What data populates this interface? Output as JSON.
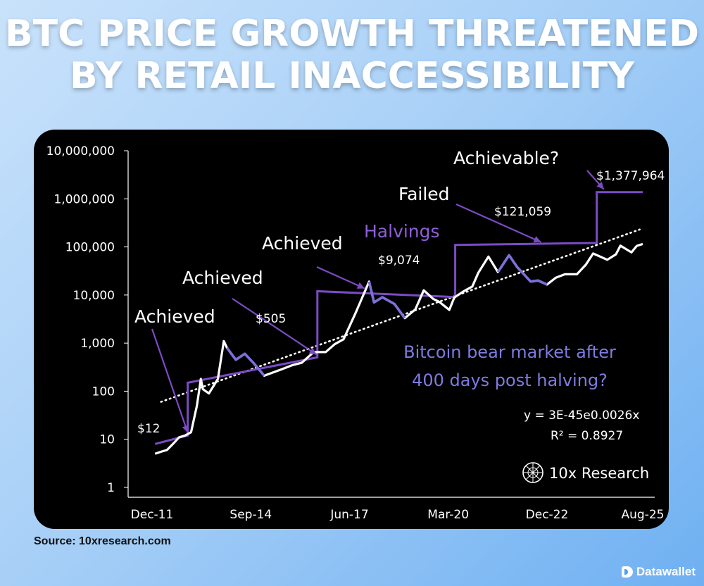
{
  "title_line1": "BTC PRICE GROWTH THREATENED",
  "title_line2": "BY RETAIL INACCESSIBILITY",
  "source": "Source: 10xresearch.com",
  "brand": "Datawallet",
  "logo_name": "10x Research",
  "colors": {
    "price_line": "#ffffff",
    "bear_segments": "#7b6fd8",
    "halving_line": "#7c4bc4",
    "trendline": "#ffffff",
    "background": "#000000"
  },
  "chart_data": {
    "type": "line",
    "title": "BTC PRICE GROWTH THREATENED BY RETAIL INACCESSIBILITY",
    "y_scale": "log",
    "ylim": [
      1,
      10000000
    ],
    "y_ticks": [
      "10,000,000",
      "1,000,000",
      "100,000",
      "10,000",
      "1,000",
      "100",
      "10",
      "1"
    ],
    "y_tick_values": [
      10000000,
      1000000,
      100000,
      10000,
      1000,
      100,
      10,
      1
    ],
    "x_ticks": [
      "Dec-11",
      "Sep-14",
      "Jun-17",
      "Mar-20",
      "Dec-22",
      "Aug-25"
    ],
    "x_tick_dates": [
      "2011-12-01",
      "2014-09-01",
      "2017-06-01",
      "2020-03-01",
      "2022-12-01",
      "2025-08-01"
    ],
    "xlim": [
      "2011-12-01",
      "2025-08-01"
    ],
    "grid": false,
    "series": [
      {
        "type": "line",
        "points": [
          [
            "2012-01-01",
            5
          ],
          [
            "2012-03-01",
            5.5
          ],
          [
            "2012-05-01",
            6
          ],
          [
            "2012-07-01",
            8
          ],
          [
            "2012-09-01",
            11
          ],
          [
            "2012-11-01",
            12
          ],
          [
            "2013-01-01",
            14
          ],
          [
            "2013-03-01",
            50
          ],
          [
            "2013-04-10",
            180
          ],
          [
            "2013-05-01",
            110
          ],
          [
            "2013-07-01",
            90
          ],
          [
            "2013-10-01",
            180
          ],
          [
            "2013-11-30",
            1100
          ],
          [
            "2014-01-01",
            800
          ],
          [
            "2014-04-01",
            450
          ],
          [
            "2014-07-01",
            600
          ],
          [
            "2014-10-01",
            380
          ],
          [
            "2015-01-15",
            210
          ],
          [
            "2015-04-01",
            240
          ],
          [
            "2015-07-01",
            280
          ],
          [
            "2015-11-01",
            350
          ],
          [
            "2016-02-01",
            390
          ],
          [
            "2016-06-01",
            650
          ],
          [
            "2016-10-01",
            650
          ],
          [
            "2017-01-01",
            950
          ],
          [
            "2017-04-01",
            1200
          ],
          [
            "2017-08-01",
            4200
          ],
          [
            "2017-12-17",
            19000
          ],
          [
            "2018-02-05",
            7000
          ],
          [
            "2018-05-01",
            9000
          ],
          [
            "2018-09-01",
            6500
          ],
          [
            "2018-12-15",
            3300
          ],
          [
            "2019-04-01",
            5000
          ],
          [
            "2019-06-26",
            12500
          ],
          [
            "2019-10-01",
            8300
          ],
          [
            "2019-12-01",
            7200
          ],
          [
            "2020-03-12",
            4900
          ],
          [
            "2020-05-01",
            8800
          ],
          [
            "2020-08-01",
            11800
          ],
          [
            "2020-11-01",
            15000
          ],
          [
            "2021-01-01",
            29000
          ],
          [
            "2021-04-14",
            63000
          ],
          [
            "2021-07-20",
            30000
          ],
          [
            "2021-11-10",
            67000
          ],
          [
            "2022-02-01",
            38000
          ],
          [
            "2022-06-18",
            19000
          ],
          [
            "2022-09-01",
            20000
          ],
          [
            "2022-12-01",
            16500
          ],
          [
            "2023-03-01",
            23000
          ],
          [
            "2023-06-01",
            27000
          ],
          [
            "2023-10-01",
            27000
          ],
          [
            "2024-01-01",
            43000
          ],
          [
            "2024-03-14",
            73000
          ],
          [
            "2024-08-05",
            54000
          ],
          [
            "2024-11-01",
            70000
          ],
          [
            "2024-12-17",
            106000
          ],
          [
            "2025-04-08",
            77000
          ],
          [
            "2025-06-01",
            105000
          ],
          [
            "2025-08-01",
            115000
          ]
        ]
      },
      {
        "type": "step",
        "points": [
          [
            "2012-01-01",
            8
          ],
          [
            "2012-11-28",
            12
          ],
          [
            "2012-11-28",
            150
          ],
          [
            "2016-07-09",
            505
          ],
          [
            "2016-07-09",
            12000
          ],
          [
            "2020-05-11",
            9074
          ],
          [
            "2020-05-11",
            110000
          ],
          [
            "2024-04-20",
            121059
          ],
          [
            "2024-04-20",
            1377964
          ],
          [
            "2025-08-01",
            1377964
          ]
        ]
      },
      {
        "type": "trendline",
        "points": [
          [
            "2012-03-01",
            60
          ],
          [
            "2025-07-01",
            230000
          ]
        ]
      }
    ],
    "annotations": [
      {
        "text": "Achieved",
        "kind": "label",
        "arrow_to": [
          "2012-11-28",
          12
        ]
      },
      {
        "text": "Achieved",
        "kind": "label",
        "arrow_to": [
          "2016-07-01",
          505
        ]
      },
      {
        "text": "Achieved",
        "kind": "label",
        "arrow_to": [
          "2017-11-01",
          12000
        ]
      },
      {
        "text": "Failed",
        "kind": "label",
        "arrow_to": [
          "2022-10-01",
          110000
        ]
      },
      {
        "text": "Achievable?",
        "kind": "label",
        "arrow_to": [
          "2024-07-01",
          1377964
        ]
      },
      {
        "text": "Halvings",
        "kind": "halving"
      },
      {
        "text": "$12",
        "kind": "price"
      },
      {
        "text": "$505",
        "kind": "price"
      },
      {
        "text": "$9,074",
        "kind": "price"
      },
      {
        "text": "$121,059",
        "kind": "price"
      },
      {
        "text": "$1,377,964",
        "kind": "price"
      }
    ],
    "bear_note_line1": "Bitcoin bear market after",
    "bear_note_line2": "400 days post halving?",
    "equation": "y = 3E-45e0.0026x",
    "r_squared": "R² = 0.8927"
  }
}
